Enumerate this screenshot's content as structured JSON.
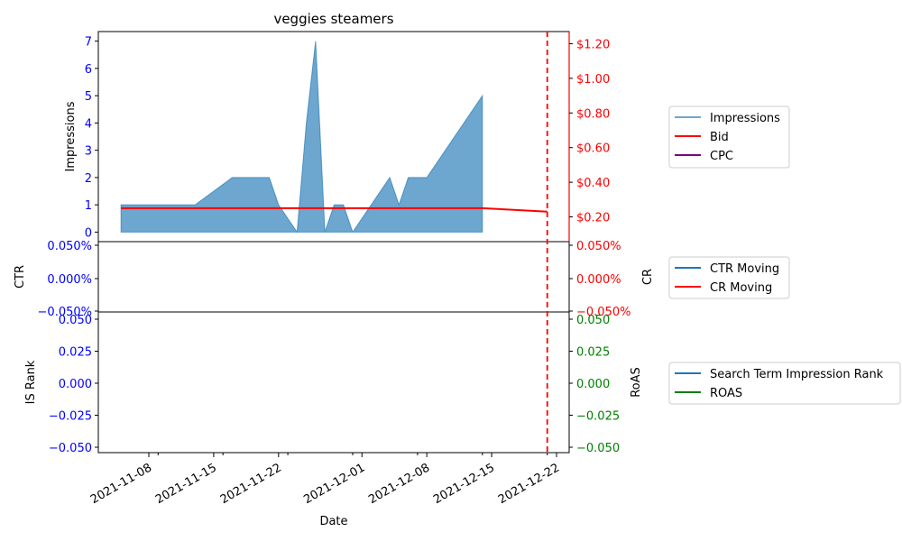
{
  "chart_data": {
    "type": "area",
    "title": "veggies steamers",
    "xlabel": "Date",
    "x_ticks": [
      "2021-11-08",
      "2021-11-15",
      "2021-11-22",
      "2021-12-01",
      "2021-12-08",
      "2021-12-15",
      "2021-12-22"
    ],
    "marker_date": "2021-12-21",
    "marker_color": "#ff0000",
    "panels": {
      "top": {
        "ylabel_left": "Impressions",
        "ylabel_right": "",
        "ylim_left": [
          -0.35,
          7.35
        ],
        "ylim_right": [
          0.057,
          1.27
        ],
        "yticks_left": [
          "0",
          "1",
          "2",
          "3",
          "4",
          "5",
          "6",
          "7"
        ],
        "yticks_right": [
          "$0.20",
          "$0.40",
          "$0.60",
          "$0.80",
          "$1.00",
          "$1.20"
        ],
        "left_tick_color": "#0000ff",
        "right_tick_color": "#ff0000",
        "impressions": {
          "name": "Impressions",
          "color": "#1f77b4",
          "points": [
            [
              "2021-11-05",
              1
            ],
            [
              "2021-11-13",
              1
            ],
            [
              "2021-11-17",
              2
            ],
            [
              "2021-11-21",
              2
            ],
            [
              "2021-11-22",
              1
            ],
            [
              "2021-11-24",
              0
            ],
            [
              "2021-11-25",
              4
            ],
            [
              "2021-11-26",
              7
            ],
            [
              "2021-11-27",
              0
            ],
            [
              "2021-11-28",
              1
            ],
            [
              "2021-11-29",
              1
            ],
            [
              "2021-11-30",
              0
            ],
            [
              "2021-12-04",
              2
            ],
            [
              "2021-12-05",
              1
            ],
            [
              "2021-12-06",
              2
            ],
            [
              "2021-12-08",
              2
            ],
            [
              "2021-12-14",
              5
            ]
          ]
        },
        "bid": {
          "name": "Bid",
          "color": "#ff0000",
          "points": [
            [
              "2021-11-05",
              0.25
            ],
            [
              "2021-12-14",
              0.25
            ],
            [
              "2021-12-21",
              0.23
            ]
          ]
        },
        "cpc": {
          "name": "CPC",
          "color": "#800080",
          "points": []
        }
      },
      "middle": {
        "ylabel_left": "CTR",
        "ylabel_right": "CR",
        "yticks_left": [
          "0.050%",
          "0.000%",
          "−0.050%"
        ],
        "yticks_right": [
          "0.050%",
          "0.000%",
          "−0.050%"
        ],
        "left_tick_color": "#0000ff",
        "right_tick_color": "#ff0000",
        "series": [
          {
            "name": "CTR Moving",
            "color": "#1f77b4",
            "values": []
          },
          {
            "name": "CR Moving",
            "color": "#ff0000",
            "values": []
          }
        ]
      },
      "bottom": {
        "ylabel_left": "IS Rank",
        "ylabel_right": "RoAS",
        "yticks_left": [
          "0.050",
          "0.025",
          "0.000",
          "−0.025",
          "−0.050"
        ],
        "yticks_right": [
          "0.050",
          "0.025",
          "0.000",
          "−0.025",
          "−0.050"
        ],
        "left_tick_color": "#0000ff",
        "right_tick_color": "#008000",
        "series": [
          {
            "name": "Search Term Impression Rank",
            "color": "#1f77b4",
            "values": []
          },
          {
            "name": "ROAS",
            "color": "#008000",
            "values": []
          }
        ]
      }
    },
    "legends": [
      [
        "Impressions",
        "Bid",
        "CPC"
      ],
      [
        "CTR Moving",
        "CR Moving"
      ],
      [
        "Search Term Impression Rank",
        "ROAS"
      ]
    ]
  }
}
